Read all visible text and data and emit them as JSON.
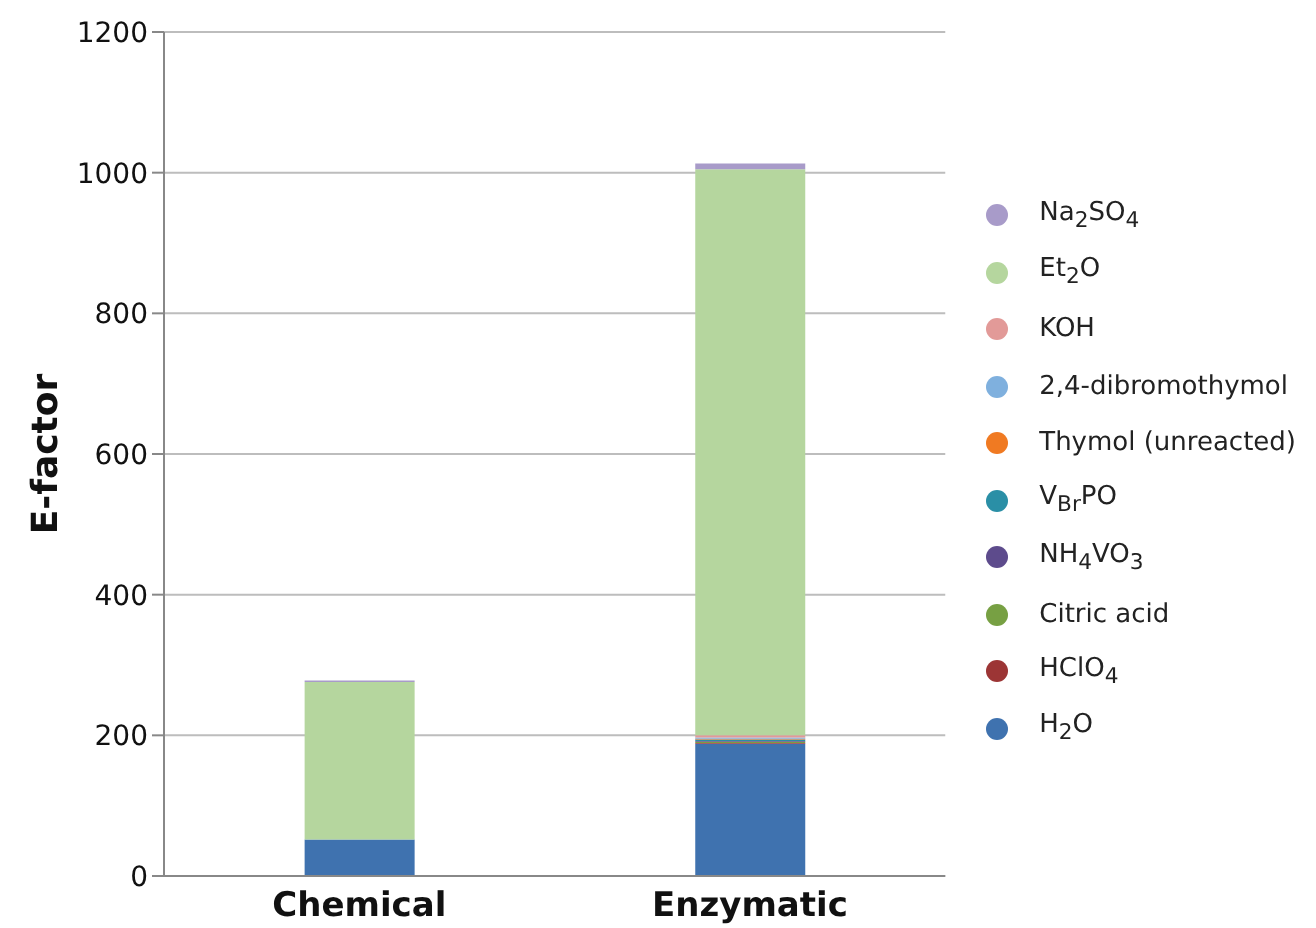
{
  "chart_data": {
    "type": "bar",
    "stacked": true,
    "ylabel": "E-factor",
    "categories": [
      "Chemical",
      "Enzymatic"
    ],
    "ylim": [
      0,
      1200
    ],
    "yticks": [
      0,
      200,
      400,
      600,
      800,
      1000,
      1200
    ],
    "grid": "y",
    "legend": "right",
    "series": [
      {
        "name": "H$_{2}$O",
        "color": "#3f72af",
        "values": [
          52,
          188
        ]
      },
      {
        "name": "HClO$_{4}$",
        "color": "#9c3535",
        "values": [
          0,
          1
        ]
      },
      {
        "name": "Citric acid",
        "color": "#77a043",
        "values": [
          0,
          2
        ]
      },
      {
        "name": "NH$_{4}$VO$_{3}$",
        "color": "#5d4b8c",
        "values": [
          0,
          1
        ]
      },
      {
        "name": "V$_{Br}$PO",
        "color": "#2a8fa6",
        "values": [
          0,
          2
        ]
      },
      {
        "name": "Thymol (unreacted)",
        "color": "#f07a22",
        "values": [
          0,
          1
        ]
      },
      {
        "name": "2,4-dibromothymol",
        "color": "#7fb0de",
        "values": [
          0,
          2
        ]
      },
      {
        "name": "KOH",
        "color": "#e29a98",
        "values": [
          0,
          3
        ]
      },
      {
        "name": "Et$_{2}$O",
        "color": "#b5d69e",
        "values": [
          224,
          805
        ]
      },
      {
        "name": "Na$_{2}$SO$_{4}$",
        "color": "#a89bc9",
        "values": [
          2,
          8
        ]
      }
    ]
  }
}
